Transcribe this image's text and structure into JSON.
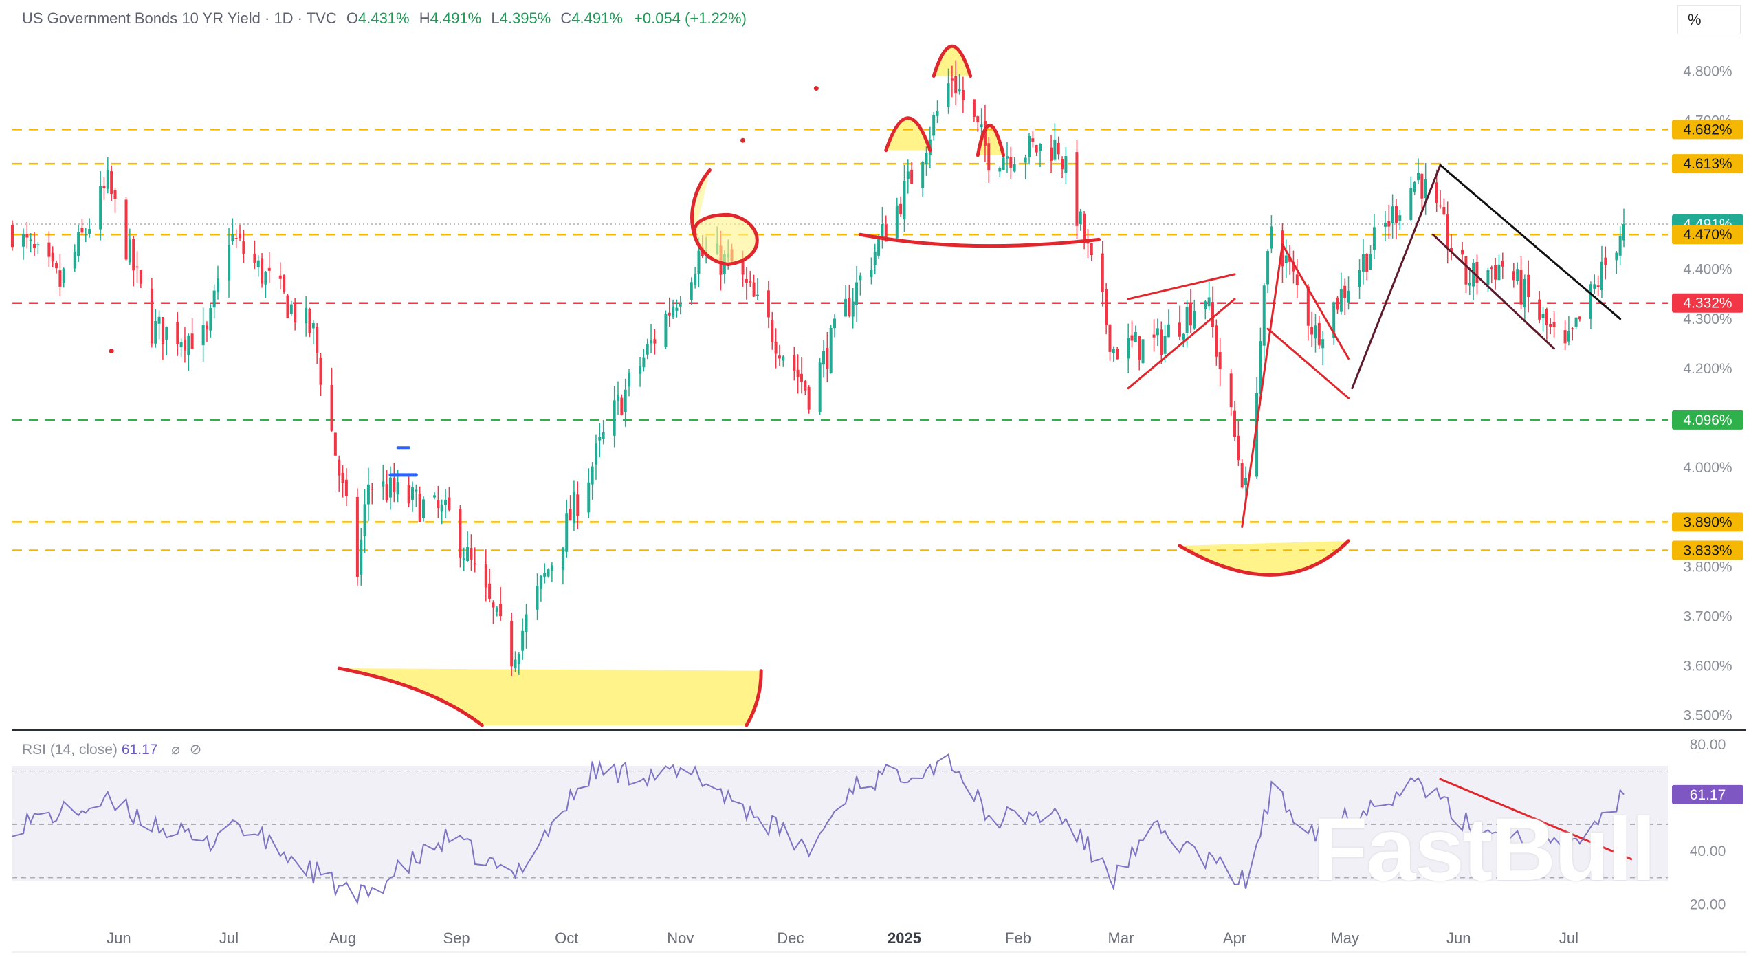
{
  "header": {
    "title": "US Government Bonds 10 YR Yield · 1D · TVC",
    "open_label": "O",
    "open": "4.431%",
    "high_label": "H",
    "high": "4.491%",
    "low_label": "L",
    "low": "4.395%",
    "close_label": "C",
    "close": "4.491%",
    "change": "+0.054 (+1.22%)"
  },
  "unit_button": "%",
  "watermark": "FastBull",
  "rsi_header": {
    "label": "RSI (14, close)",
    "value": "61.17"
  },
  "colors": {
    "up": "#22ab94",
    "down": "#f23645",
    "rsi_line": "#7e74c4",
    "level_orange": "#f5b700",
    "level_red": "#f23645",
    "level_green": "#2eb04b",
    "highlight": "#fff38a",
    "annotation_red": "#e0272d"
  },
  "chart_data": [
    {
      "type": "candlestick",
      "title": "US Government Bonds 10 YR Yield · 1D · TVC",
      "y_ticks": [
        "4.800%",
        "4.700%",
        "4.400%",
        "4.300%",
        "4.200%",
        "4.000%",
        "3.800%",
        "3.700%",
        "3.600%",
        "3.500%"
      ],
      "y_tick_values": [
        4.8,
        4.7,
        4.4,
        4.3,
        4.2,
        4.0,
        3.8,
        3.7,
        3.6,
        3.5
      ],
      "ylim": [
        3.48,
        4.86
      ],
      "x_ticks": [
        "Jun",
        "Jul",
        "Aug",
        "Sep",
        "Oct",
        "Nov",
        "Dec",
        "2025",
        "Feb",
        "Mar",
        "Apr",
        "May",
        "Jun",
        "Jul"
      ],
      "x_tick_dates": [
        "2024-06-01",
        "2024-07-01",
        "2024-08-01",
        "2024-09-01",
        "2024-10-01",
        "2024-11-01",
        "2024-12-01",
        "2025-01-01",
        "2025-02-01",
        "2025-03-01",
        "2025-04-01",
        "2025-05-01",
        "2025-06-01",
        "2025-07-01"
      ],
      "date_range": [
        "2024-05-03",
        "2025-07-16"
      ],
      "path_dates": [
        "2024-05-03",
        "2024-05-16",
        "2024-05-29",
        "2024-06-10",
        "2024-06-25",
        "2024-07-01",
        "2024-07-24",
        "2024-08-05",
        "2024-08-08",
        "2024-08-30",
        "2024-09-16",
        "2024-10-14",
        "2024-11-06",
        "2024-11-15",
        "2024-12-06",
        "2024-12-18",
        "2025-01-02",
        "2025-01-14",
        "2025-01-24",
        "2025-02-12",
        "2025-02-27",
        "2025-03-11",
        "2025-03-24",
        "2025-04-04",
        "2025-04-11",
        "2025-04-23",
        "2025-05-21",
        "2025-06-03",
        "2025-06-13",
        "2025-06-30",
        "2025-07-16"
      ],
      "path_values": [
        4.48,
        4.37,
        4.57,
        4.28,
        4.26,
        4.47,
        4.27,
        3.79,
        3.97,
        3.9,
        3.62,
        4.11,
        4.43,
        4.41,
        4.15,
        4.35,
        4.57,
        4.79,
        4.63,
        4.65,
        4.24,
        4.25,
        4.35,
        3.95,
        4.49,
        4.27,
        4.59,
        4.38,
        4.41,
        4.23,
        4.491
      ],
      "last_close": 4.491,
      "levels": [
        {
          "label": "4.682%",
          "value": 4.682,
          "color": "#f5b700"
        },
        {
          "label": "4.613%",
          "value": 4.613,
          "color": "#f5b700"
        },
        {
          "label": "4.491%",
          "value": 4.491,
          "color": "#22ab94"
        },
        {
          "label": "4.470%",
          "value": 4.47,
          "color": "#f5b700"
        },
        {
          "label": "4.332%",
          "value": 4.332,
          "color": "#f23645"
        },
        {
          "label": "4.096%",
          "value": 4.096,
          "color": "#2eb04b"
        },
        {
          "label": "3.890%",
          "value": 3.89,
          "color": "#f5b700"
        },
        {
          "label": "3.833%",
          "value": 3.833,
          "color": "#f5b700"
        }
      ],
      "grid": false
    },
    {
      "type": "line",
      "title": "RSI (14, close)",
      "y_ticks": [
        "80.00",
        "40.00",
        "20.00"
      ],
      "y_tick_values": [
        80,
        40,
        20
      ],
      "ylim": [
        15,
        82
      ],
      "bands": [
        70,
        50,
        30
      ],
      "last_value": 61.17,
      "path_dates": [
        "2024-05-03",
        "2024-05-29",
        "2024-06-25",
        "2024-07-01",
        "2024-08-05",
        "2024-08-30",
        "2024-09-16",
        "2024-10-08",
        "2024-11-06",
        "2024-12-06",
        "2024-12-18",
        "2025-01-14",
        "2025-01-24",
        "2025-02-12",
        "2025-02-27",
        "2025-03-11",
        "2025-04-04",
        "2025-04-11",
        "2025-04-23",
        "2025-05-21",
        "2025-06-03",
        "2025-06-30",
        "2025-07-16"
      ],
      "path_values": [
        50,
        58,
        42,
        52,
        22,
        45,
        30,
        70,
        68,
        40,
        65,
        74,
        52,
        54,
        30,
        48,
        28,
        62,
        48,
        66,
        50,
        40,
        61.17
      ]
    }
  ]
}
